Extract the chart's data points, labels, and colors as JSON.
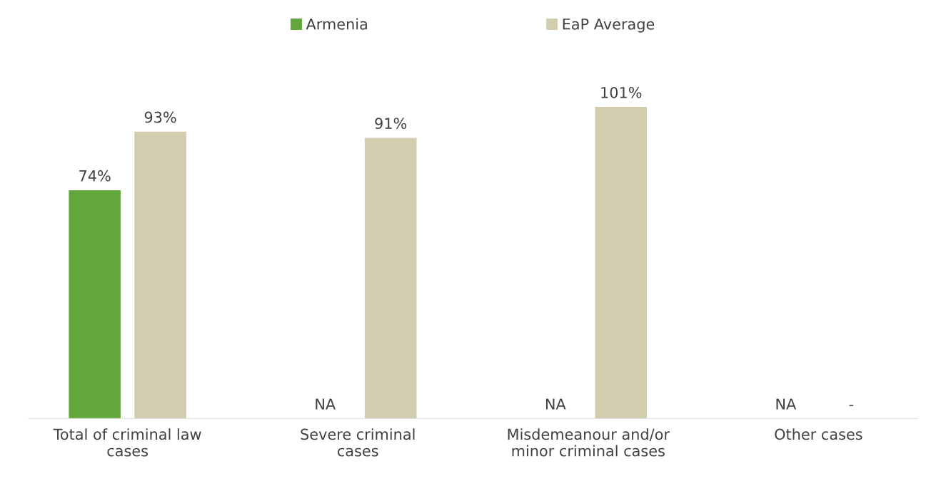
{
  "chart_data": {
    "type": "bar",
    "categories": [
      "Total of criminal law\ncases",
      "Severe criminal\ncases",
      "Misdemeanour and/or\nminor criminal cases",
      "Other cases"
    ],
    "series": [
      {
        "name": "Armenia",
        "color": "#62a73b",
        "values": [
          74,
          null,
          null,
          null
        ],
        "value_labels": [
          "74%",
          "NA",
          "NA",
          "NA"
        ]
      },
      {
        "name": "EaP Average",
        "color": "#d3cdb0",
        "values": [
          93,
          91,
          101,
          null
        ],
        "value_labels": [
          "93%",
          "91%",
          "101%",
          "-"
        ]
      }
    ],
    "legend": "top",
    "grid": false
  }
}
